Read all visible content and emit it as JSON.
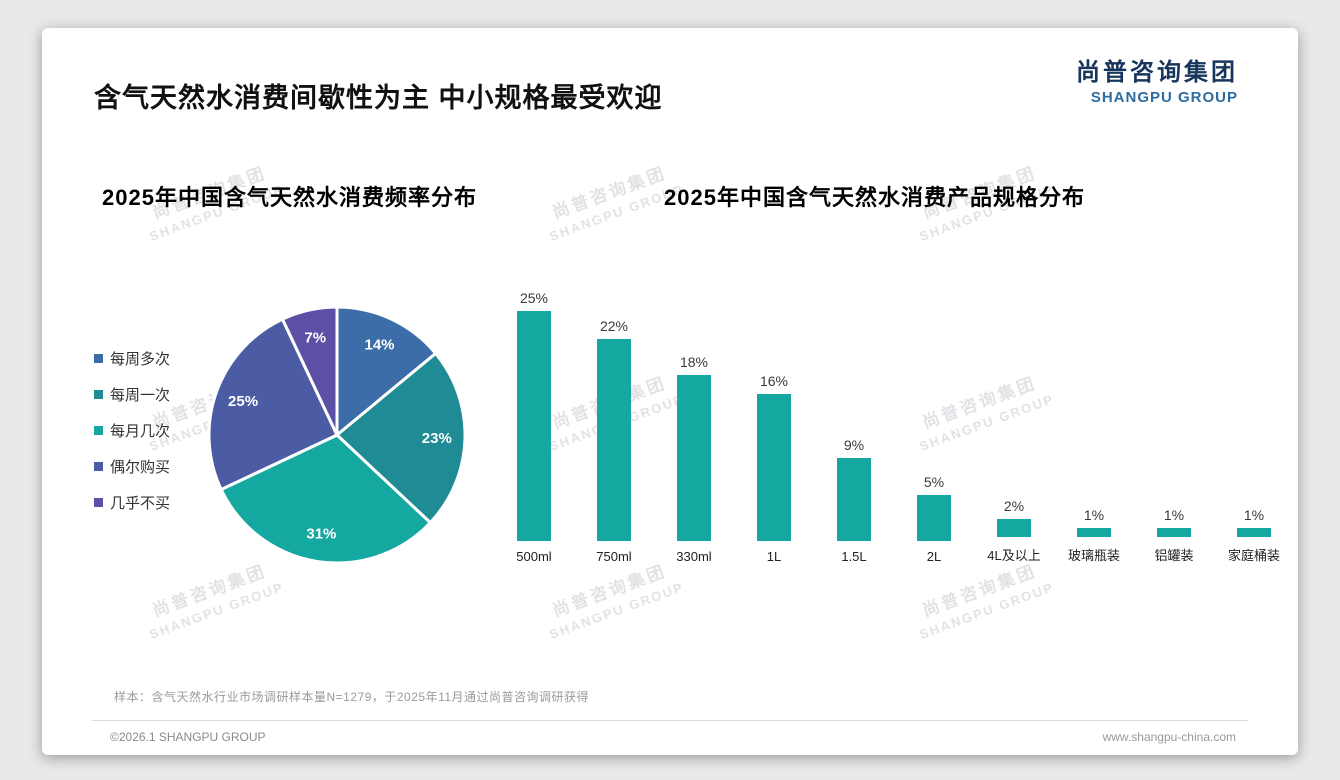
{
  "page": {
    "title": "含气天然水消费间歇性为主 中小规格最受欢迎",
    "logo": {
      "cn": "尚普咨询集团",
      "en": "SHANGPU GROUP"
    },
    "watermark": {
      "cn": "尚普咨询集团",
      "en": "SHANGPU GROUP"
    },
    "footnote": "样本：含气天然水行业市场调研样本量N=1279，于2025年11月通过尚普咨询调研获得",
    "footer_left": "©2026.1 SHANGPU GROUP",
    "footer_right": "www.shangpu-china.com"
  },
  "chart_data": [
    {
      "type": "pie",
      "title": "2025年中国含气天然水消费频率分布",
      "categories": [
        "每周多次",
        "每周一次",
        "每月几次",
        "偶尔购买",
        "几乎不买"
      ],
      "values": [
        14,
        23,
        31,
        25,
        7
      ],
      "labels": [
        "14%",
        "23%",
        "31%",
        "25%",
        "7%"
      ],
      "colors": [
        "#3c6da8",
        "#1f8b94",
        "#14a8a1",
        "#4b5ca4",
        "#5b50a6"
      ],
      "legend_position": "left",
      "start_angle_deg": 0,
      "direction": "clockwise"
    },
    {
      "type": "bar",
      "title": "2025年中国含气天然水消费产品规格分布",
      "categories": [
        "500ml",
        "750ml",
        "330ml",
        "1L",
        "1.5L",
        "2L",
        "4L及以上",
        "玻璃瓶装",
        "铝罐装",
        "家庭桶装"
      ],
      "values": [
        25,
        22,
        18,
        16,
        9,
        5,
        2,
        1,
        1,
        1
      ],
      "value_labels": [
        "25%",
        "22%",
        "18%",
        "16%",
        "9%",
        "5%",
        "2%",
        "1%",
        "1%",
        "1%"
      ],
      "bar_color": "#14a8a1",
      "ylabel": "",
      "xlabel": "",
      "ylim": [
        0,
        27
      ],
      "grid": false,
      "legend_position": "none"
    }
  ]
}
